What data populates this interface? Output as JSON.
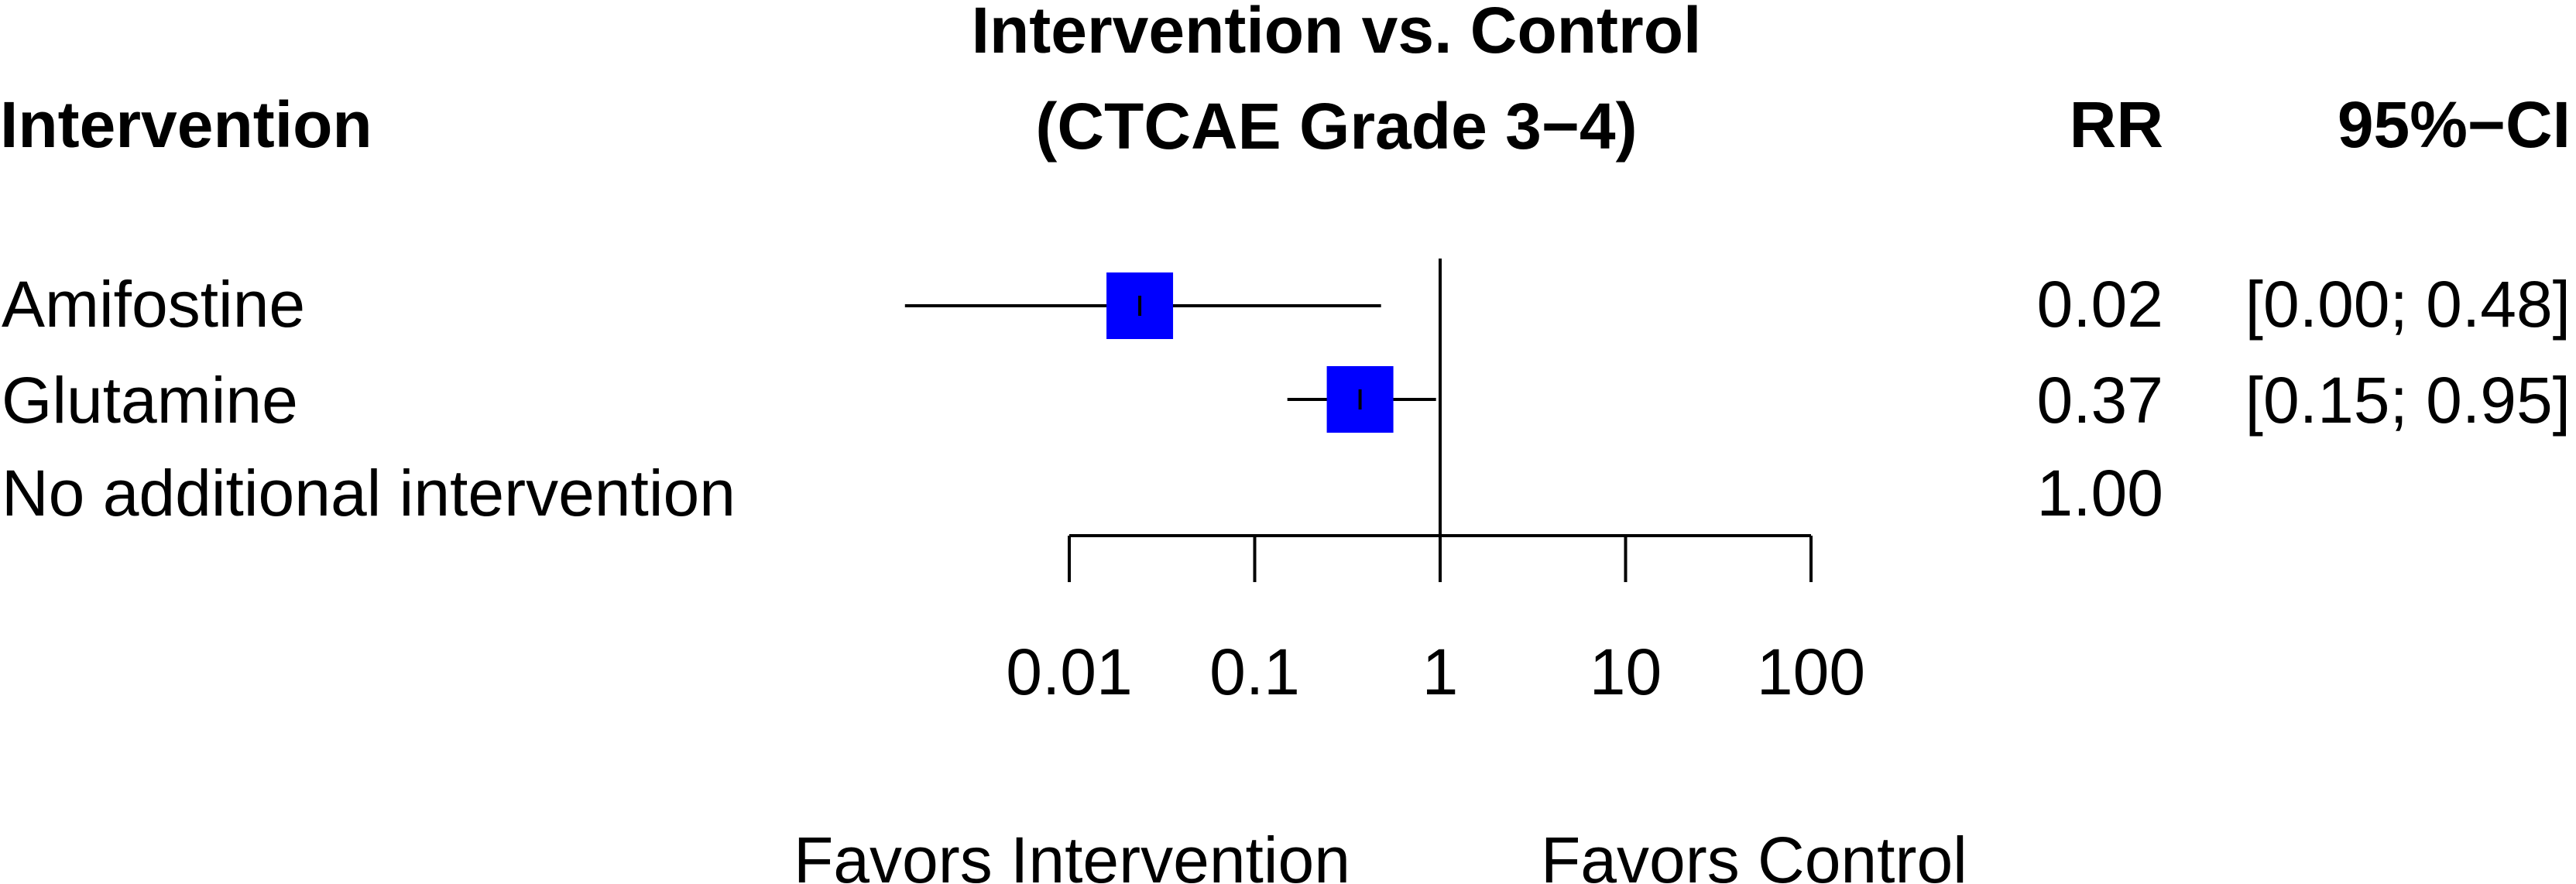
{
  "chart_data": {
    "type": "forest",
    "title_line1": "Intervention vs. Control",
    "title_line2": "(CTCAE Grade 3−4)",
    "column_headers": {
      "label": "Intervention",
      "rr": "RR",
      "ci": "95%−CI"
    },
    "rows": [
      {
        "name": "Amifostine",
        "rr": 0.02,
        "rr_text": "0.02",
        "ci_low": 0.0,
        "ci_high": 0.48,
        "ci_text": "[0.00; 0.48]",
        "point_est": 0.024,
        "whisker_low": 0.0013,
        "whisker_high": 0.48,
        "has_ci": true
      },
      {
        "name": "Glutamine",
        "rr": 0.37,
        "rr_text": "0.37",
        "ci_low": 0.15,
        "ci_high": 0.95,
        "ci_text": "[0.15; 0.95]",
        "point_est": 0.37,
        "whisker_low": 0.15,
        "whisker_high": 0.95,
        "has_ci": true
      },
      {
        "name": "No additional intervention",
        "rr": 1.0,
        "rr_text": "1.00",
        "ci_text": "",
        "has_ci": false
      }
    ],
    "x_scale": "log10",
    "xlim": [
      0.01,
      100
    ],
    "x_ticks": [
      0.01,
      0.1,
      1,
      10,
      100
    ],
    "x_tick_labels": [
      "0.01",
      "0.1",
      "1",
      "10",
      "100"
    ],
    "reference_line": 1,
    "favors_left": "Favors Intervention",
    "favors_right": "Favors Control",
    "marker_color": "#0000ff",
    "line_color": "#000000"
  }
}
